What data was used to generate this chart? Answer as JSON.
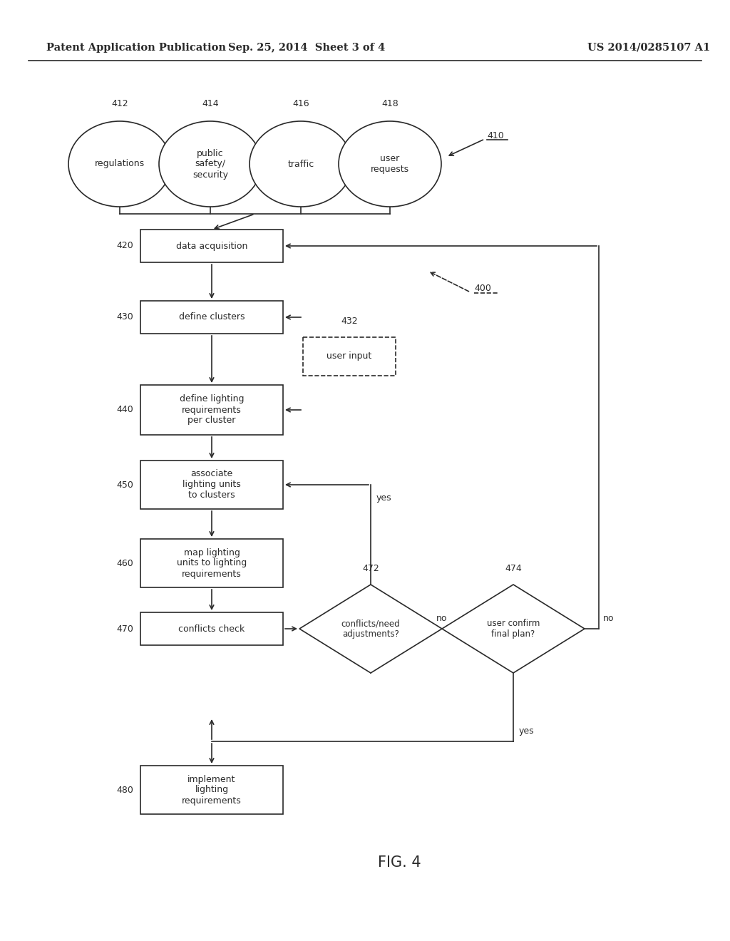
{
  "header_left": "Patent Application Publication",
  "header_mid": "Sep. 25, 2014  Sheet 3 of 4",
  "header_right": "US 2014/0285107 A1",
  "fig_label": "FIG. 4",
  "bg_color": "#ffffff",
  "line_color": "#2a2a2a",
  "text_color": "#2a2a2a",
  "font_size": 9,
  "header_font_size": 10.5
}
